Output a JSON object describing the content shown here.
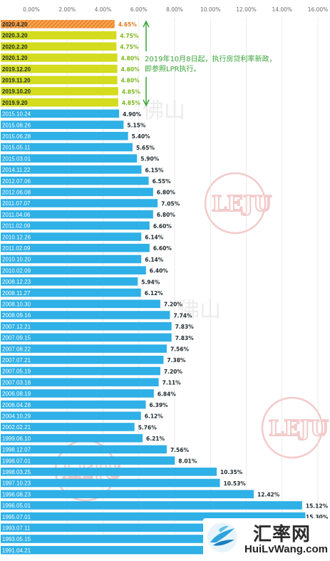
{
  "chart_data": {
    "type": "bar",
    "orientation": "horizontal",
    "x_axis": {
      "range": [
        0,
        16
      ],
      "ticks": [
        "0.00%",
        "2.00%",
        "4.00%",
        "6.00%",
        "8.00%",
        "10.00%",
        "12.00%",
        "14.00%",
        "16.00%"
      ],
      "position": "top"
    },
    "colors": {
      "lpr": "#d3dc1e",
      "latest": "#f08a2c",
      "benchmark": "#2fb0e6",
      "lpr_label": "#7cb518",
      "latest_label": "#e07a19",
      "benchmark_label": "#1f2a2e",
      "annotation": "#3aa43a"
    },
    "annotation": [
      "2019年10月8日起，执行房贷利率新政，",
      "即参照LPR执行。"
    ],
    "bars": [
      {
        "date": "2020.4.20",
        "value": 4.65,
        "label": "4.65%",
        "group": "latest"
      },
      {
        "date": "2020.3.20",
        "value": 4.75,
        "label": "4.75%",
        "group": "lpr"
      },
      {
        "date": "2020.2.20",
        "value": 4.75,
        "label": "4.75%",
        "group": "lpr"
      },
      {
        "date": "2020.1.20",
        "value": 4.8,
        "label": "4.80%",
        "group": "lpr"
      },
      {
        "date": "2019.12.20",
        "value": 4.8,
        "label": "4.80%",
        "group": "lpr"
      },
      {
        "date": "2019.11.20",
        "value": 4.8,
        "label": "4.80%",
        "group": "lpr"
      },
      {
        "date": "2019.10.20",
        "value": 4.85,
        "label": "4.85%",
        "group": "lpr"
      },
      {
        "date": "2019.9.20",
        "value": 4.85,
        "label": "4.85%",
        "group": "lpr"
      },
      {
        "date": "2015.10.24",
        "value": 4.9,
        "label": "4.90%",
        "group": "benchmark"
      },
      {
        "date": "2015.08.26",
        "value": 5.15,
        "label": "5.15%",
        "group": "benchmark"
      },
      {
        "date": "2015.06.28",
        "value": 5.4,
        "label": "5.40%",
        "group": "benchmark"
      },
      {
        "date": "2015.05.11",
        "value": 5.65,
        "label": "5.65%",
        "group": "benchmark"
      },
      {
        "date": "2015.03.01",
        "value": 5.9,
        "label": "5.90%",
        "group": "benchmark"
      },
      {
        "date": "2014.11.22",
        "value": 6.15,
        "label": "6.15%",
        "group": "benchmark"
      },
      {
        "date": "2012.07.06",
        "value": 6.55,
        "label": "6.55%",
        "group": "benchmark"
      },
      {
        "date": "2012.06.08",
        "value": 6.8,
        "label": "6.80%",
        "group": "benchmark"
      },
      {
        "date": "2011.07.07",
        "value": 7.05,
        "label": "7.05%",
        "group": "benchmark"
      },
      {
        "date": "2011.04.06",
        "value": 6.8,
        "label": "6.80%",
        "group": "benchmark"
      },
      {
        "date": "2011.02.09",
        "value": 6.6,
        "label": "6.60%",
        "group": "benchmark"
      },
      {
        "date": "2010.12.26",
        "value": 6.14,
        "label": "6.14%",
        "group": "benchmark"
      },
      {
        "date": "2011.02.09",
        "value": 6.6,
        "label": "6.60%",
        "group": "benchmark"
      },
      {
        "date": "2010.10.20",
        "value": 6.14,
        "label": "6.14%",
        "group": "benchmark"
      },
      {
        "date": "2010.02.09",
        "value": 6.4,
        "label": "6.40%",
        "group": "benchmark"
      },
      {
        "date": "2008.12.23",
        "value": 5.94,
        "label": "5.94%",
        "group": "benchmark"
      },
      {
        "date": "2008.11.27",
        "value": 6.12,
        "label": "6.12%",
        "group": "benchmark"
      },
      {
        "date": "2008.10.30",
        "value": 7.2,
        "label": "7.20%",
        "group": "benchmark"
      },
      {
        "date": "2008.09.16",
        "value": 7.74,
        "label": "7.74%",
        "group": "benchmark"
      },
      {
        "date": "2007.12.21",
        "value": 7.83,
        "label": "7.83%",
        "group": "benchmark"
      },
      {
        "date": "2007.09.15",
        "value": 7.83,
        "label": "7.83%",
        "group": "benchmark"
      },
      {
        "date": "2007.08.22",
        "value": 7.56,
        "label": "7.56%",
        "group": "benchmark"
      },
      {
        "date": "2007.07.21",
        "value": 7.38,
        "label": "7.38%",
        "group": "benchmark"
      },
      {
        "date": "2007.05.19",
        "value": 7.2,
        "label": "7.20%",
        "group": "benchmark"
      },
      {
        "date": "2007.03.18",
        "value": 7.11,
        "label": "7.11%",
        "group": "benchmark"
      },
      {
        "date": "2006.08.19",
        "value": 6.84,
        "label": "6.84%",
        "group": "benchmark"
      },
      {
        "date": "2006.04.28",
        "value": 6.39,
        "label": "6.39%",
        "group": "benchmark"
      },
      {
        "date": "2004.10.29",
        "value": 6.12,
        "label": "6.12%",
        "group": "benchmark"
      },
      {
        "date": "2002.02.21",
        "value": 5.76,
        "label": "5.76%",
        "group": "benchmark"
      },
      {
        "date": "1999.06.10",
        "value": 6.21,
        "label": "6.21%",
        "group": "benchmark"
      },
      {
        "date": "1998.12.07",
        "value": 7.56,
        "label": "7.56%",
        "group": "benchmark"
      },
      {
        "date": "1998.07.01",
        "value": 8.01,
        "label": "8.01%",
        "group": "benchmark"
      },
      {
        "date": "1998.03.25",
        "value": 10.35,
        "label": "10.35%",
        "group": "benchmark"
      },
      {
        "date": "1997.10.23",
        "value": 10.53,
        "label": "10.53%",
        "group": "benchmark"
      },
      {
        "date": "1996.08.23",
        "value": 12.42,
        "label": "12.42%",
        "group": "benchmark"
      },
      {
        "date": "1996.05.01",
        "value": 15.12,
        "label": "15.12%",
        "group": "benchmark"
      },
      {
        "date": "1995.07.01",
        "value": 15.3,
        "label": "15.30%",
        "group": "benchmark"
      },
      {
        "date": "1993.07.11",
        "value": 15.3,
        "label": "",
        "group": "benchmark"
      },
      {
        "date": "1993.05.15",
        "value": 15.3,
        "label": "",
        "group": "benchmark"
      },
      {
        "date": "1991.04.21",
        "value": 15.3,
        "label": "",
        "group": "benchmark"
      }
    ]
  },
  "watermark": {
    "brand": "LEJU",
    "city": "佛山"
  },
  "logo": {
    "cn": "汇率网",
    "en": "HuiLvWang.com"
  }
}
